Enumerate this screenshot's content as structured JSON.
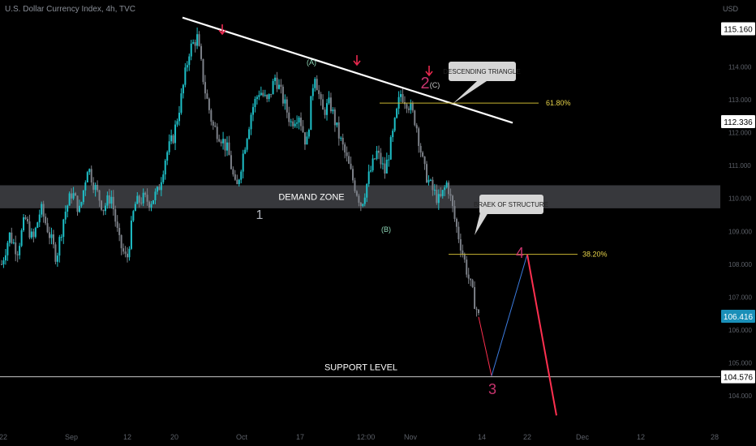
{
  "header": {
    "title": "U.S. Dollar Currency Index, 4h, TVC",
    "currency": "USD"
  },
  "colors": {
    "background": "#000000",
    "up_candle": "#1ec0c8",
    "down_candle": "#7c8088",
    "trendline": "#ffffff",
    "fib_line": "#c8b432",
    "fib_label": "#e8d44a",
    "wave_number": "#c8346e",
    "arrow": "#e8284e",
    "zone_fill": "#3a3b3f",
    "tag_bg": "#d6d6d6",
    "price_tag_bg": "#ffffff",
    "last_price_bg": "#1a8fb8",
    "projection_down": "#ff3050",
    "projection_up": "#3c7ce0"
  },
  "chart_data": {
    "type": "candlestick",
    "title": "U.S. Dollar Currency Index, 4h, TVC",
    "x_tick_labels": [
      "22",
      "Sep",
      "12",
      "20",
      "Oct",
      "17",
      "12:00",
      "Nov",
      "14",
      "22",
      "Dec",
      "12",
      "28"
    ],
    "y_tick_labels": [
      104.0,
      105.0,
      106.0,
      107.0,
      108.0,
      109.0,
      110.0,
      111.0,
      112.0,
      113.0,
      114.0
    ],
    "ylim": [
      103.3,
      115.8
    ],
    "price_tags": [
      {
        "value": "115.160"
      },
      {
        "value": "112.336"
      },
      {
        "value": "106.416",
        "last": true
      },
      {
        "value": "104.576"
      }
    ],
    "price_series_approx": [
      108.0,
      108.9,
      108.4,
      109.4,
      108.7,
      109.7,
      109.0,
      108.2,
      109.5,
      110.2,
      109.6,
      111.0,
      110.3,
      109.7,
      110.1,
      108.7,
      108.1,
      109.8,
      110.0,
      109.9,
      110.2,
      111.3,
      111.9,
      113.1,
      114.5,
      114.9,
      113.3,
      112.2,
      111.9,
      111.4,
      110.2,
      111.5,
      112.7,
      113.3,
      112.9,
      113.7,
      113.0,
      112.3,
      112.6,
      111.6,
      113.9,
      112.6,
      112.9,
      112.0,
      111.3,
      110.5,
      109.8,
      110.7,
      111.4,
      110.8,
      111.9,
      113.2,
      112.9,
      112.3,
      110.9,
      110.3,
      109.9,
      110.5,
      109.3,
      108.3,
      107.3,
      106.4
    ],
    "fibonacci_levels": [
      {
        "label": "61.80%",
        "value": 112.9
      },
      {
        "label": "38.20%",
        "value": 108.3
      }
    ],
    "zones": [
      {
        "label": "DEMAND ZONE",
        "from": 109.7,
        "to": 110.4
      }
    ],
    "support_level": {
      "label": "SUPPORT LEVEL",
      "value": 104.576
    },
    "descending_trendline": {
      "from": 115.5,
      "to": 112.3
    },
    "wave_labels": [
      "1",
      "2",
      "3",
      "4"
    ],
    "corrective_labels": [
      "(A)",
      "(B)",
      "(C)"
    ],
    "annotations": [
      "DESCENDING TRIANGLE",
      "BRAEK OF STRUCTURE"
    ],
    "projection": [
      106.4,
      104.6,
      108.3,
      103.4
    ]
  }
}
